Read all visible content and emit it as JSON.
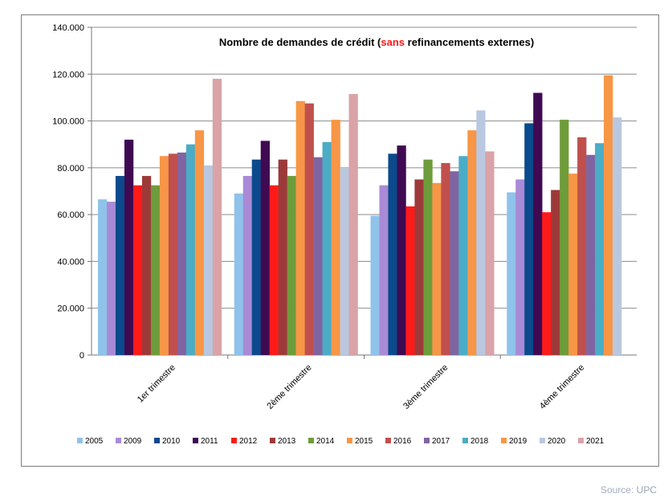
{
  "chart_data": {
    "type": "bar",
    "title_parts": {
      "before": "Nombre de demandes de crédit (",
      "highlight": "sans",
      "after": " refinancements externes)"
    },
    "categories": [
      "1er trimestre",
      "2ème trimestre",
      "3ème trimestre",
      "4ème trimestre"
    ],
    "y_ticks": [
      "0",
      "20.000",
      "40.000",
      "60.000",
      "80.000",
      "100.000",
      "120.000",
      "140.000"
    ],
    "ylim": [
      0,
      140000
    ],
    "grid": true,
    "legend_position": "bottom",
    "series": [
      {
        "name": "2005",
        "color": "#8fc3ea",
        "values": [
          66500,
          69000,
          59500,
          69500
        ]
      },
      {
        "name": "2009",
        "color": "#a98ad6",
        "values": [
          65500,
          76500,
          72500,
          75000
        ]
      },
      {
        "name": "2010",
        "color": "#0b4a8c",
        "values": [
          76500,
          83500,
          86000,
          99000
        ]
      },
      {
        "name": "2011",
        "color": "#3f0a52",
        "values": [
          92000,
          91500,
          89500,
          112000
        ]
      },
      {
        "name": "2012",
        "color": "#ff1a1a",
        "values": [
          72500,
          72500,
          63500,
          61000
        ]
      },
      {
        "name": "2013",
        "color": "#9c3a3a",
        "values": [
          76500,
          83500,
          75000,
          70500
        ]
      },
      {
        "name": "2014",
        "color": "#6f9c3a",
        "values": [
          72500,
          76500,
          83500,
          100500
        ]
      },
      {
        "name": "2015",
        "color": "#f79646",
        "values": [
          85000,
          108500,
          73500,
          77500
        ]
      },
      {
        "name": "2016",
        "color": "#c0504d",
        "values": [
          86000,
          107500,
          82000,
          93000
        ]
      },
      {
        "name": "2017",
        "color": "#8064a2",
        "values": [
          86500,
          84500,
          78500,
          85500
        ]
      },
      {
        "name": "2018",
        "color": "#4bacc6",
        "values": [
          90000,
          91000,
          85000,
          90500
        ]
      },
      {
        "name": "2019",
        "color": "#f79646",
        "values": [
          96000,
          100500,
          96000,
          119500
        ]
      },
      {
        "name": "2020",
        "color": "#b9c8e0",
        "values": [
          81000,
          80000,
          104500,
          101500
        ]
      },
      {
        "name": "2021",
        "color": "#d9a3a7",
        "values": [
          118000,
          111500,
          87000,
          0
        ]
      }
    ]
  },
  "source": {
    "label": "Source:",
    "name": "UPC"
  }
}
